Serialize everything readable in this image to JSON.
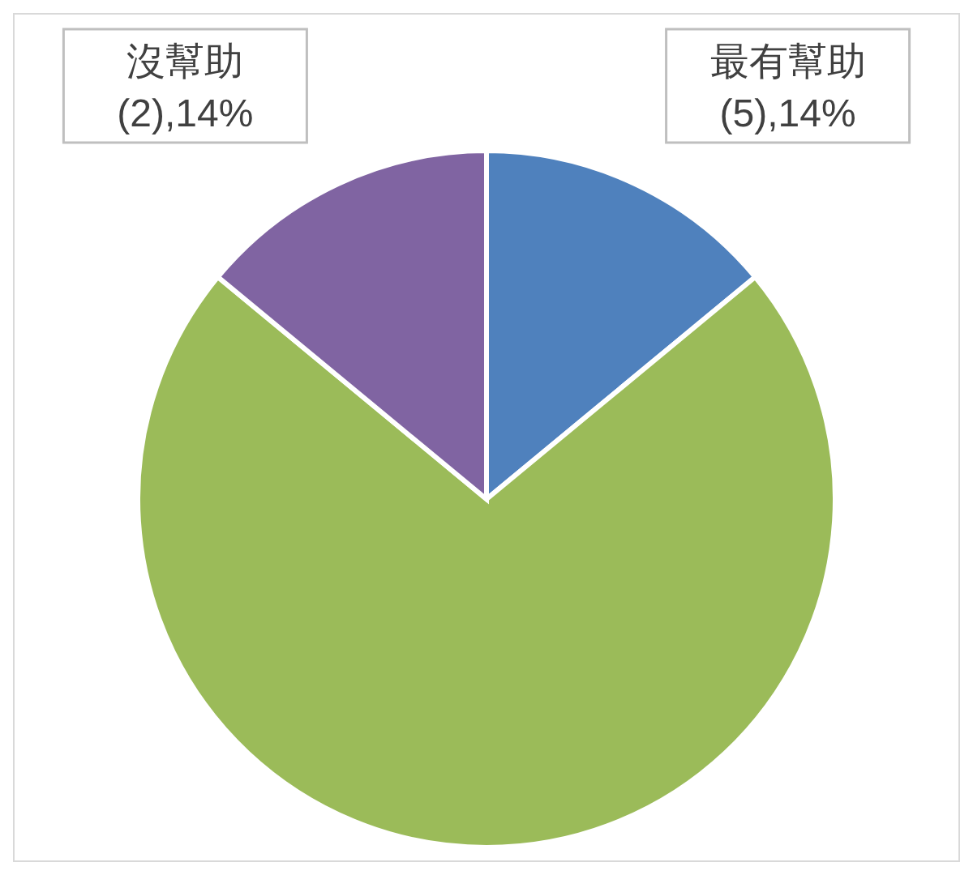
{
  "chart_data": {
    "type": "pie",
    "categories": [
      "最有幫助",
      null,
      "沒幫助"
    ],
    "values": [
      14,
      72,
      14
    ],
    "colors": [
      "#4f81bd",
      "#9bbb59",
      "#8064a2"
    ],
    "value_labels": [
      "(5),14%",
      null,
      "(2),14%"
    ]
  }
}
